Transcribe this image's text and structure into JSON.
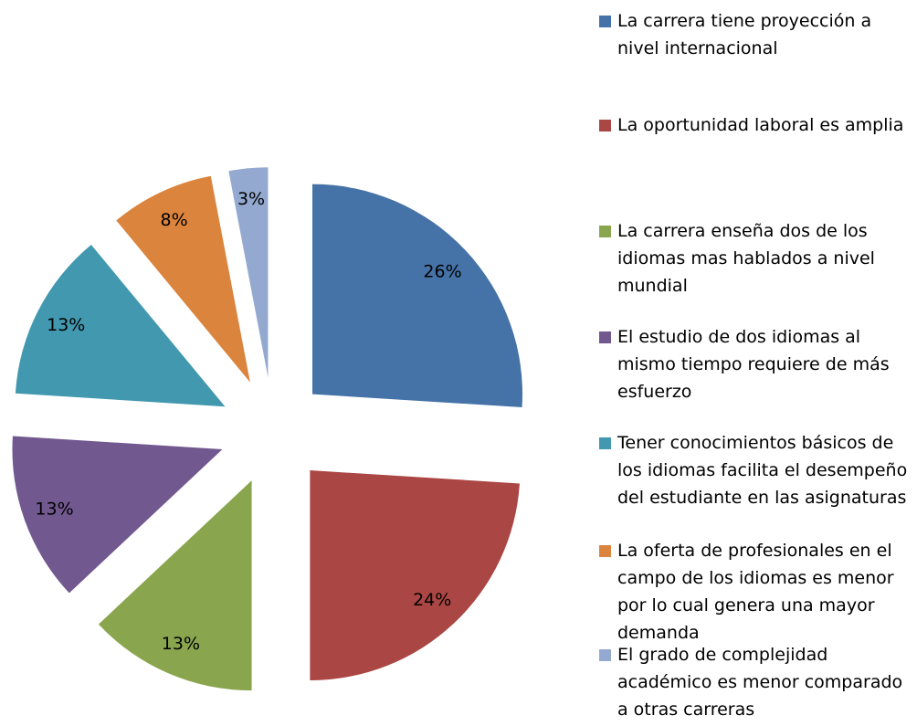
{
  "chart_data": {
    "type": "pie",
    "categories": [
      "La carrera tiene proyección a nivel internacional",
      "La oportunidad laboral es amplia",
      "La carrera enseña dos de los idiomas mas hablados a nivel mundial",
      "El estudio de dos idiomas al mismo tiempo requiere de más esfuerzo",
      "Tener conocimientos básicos de los idiomas facilita el desempeño del estudiante en las asignaturas",
      "La oferta de profesionales en el campo de los idiomas es menor por lo cual genera una mayor demanda",
      "El grado de complejidad académico es menor comparado a otras carreras"
    ],
    "values": [
      26,
      24,
      13,
      13,
      13,
      8,
      3
    ],
    "value_labels": [
      "26%",
      "24%",
      "13%",
      "13%",
      "13%",
      "8%",
      "3%"
    ],
    "colors": [
      "#4572a7",
      "#aa4643",
      "#89a54e",
      "#71588f",
      "#4198af",
      "#db843d",
      "#93a9cf"
    ],
    "exploded": true,
    "legend": "right"
  }
}
